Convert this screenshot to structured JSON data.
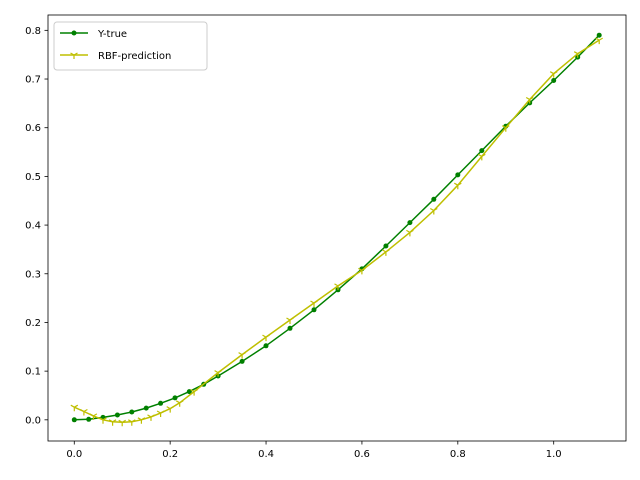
{
  "chart_data": {
    "type": "line",
    "title": "",
    "xlabel": "",
    "ylabel": "",
    "xlim": [
      -0.0548,
      1.1508
    ],
    "ylim": [
      -0.0435,
      0.8315
    ],
    "grid": false,
    "legend": "top-left",
    "xticks": [
      0.0,
      0.2,
      0.4,
      0.6,
      0.8,
      1.0
    ],
    "xtick_labels": [
      "0.0",
      "0.2",
      "0.4",
      "0.6",
      "0.8",
      "1.0"
    ],
    "yticks": [
      0.0,
      0.1,
      0.2,
      0.3,
      0.4,
      0.5,
      0.6,
      0.7,
      0.8
    ],
    "ytick_labels": [
      "0.0",
      "0.1",
      "0.2",
      "0.3",
      "0.4",
      "0.5",
      "0.6",
      "0.7",
      "0.8"
    ],
    "series": [
      {
        "name": "Y-true",
        "color": "#008000",
        "marker": "circle",
        "x": [
          0.0,
          0.03,
          0.06,
          0.09,
          0.12,
          0.15,
          0.18,
          0.21,
          0.24,
          0.27,
          0.3,
          0.35,
          0.4,
          0.45,
          0.5,
          0.55,
          0.6,
          0.65,
          0.7,
          0.75,
          0.8,
          0.85,
          0.9,
          0.95,
          1.0,
          1.05,
          1.095
        ],
        "y": [
          0.0,
          0.001,
          0.005,
          0.01,
          0.016,
          0.024,
          0.034,
          0.045,
          0.058,
          0.073,
          0.09,
          0.12,
          0.152,
          0.188,
          0.226,
          0.267,
          0.31,
          0.357,
          0.405,
          0.453,
          0.503,
          0.553,
          0.603,
          0.651,
          0.697,
          0.745,
          0.79
        ]
      },
      {
        "name": "RBF-prediction",
        "color": "#bfbf00",
        "marker": "tri_down",
        "x": [
          0.0,
          0.02,
          0.04,
          0.06,
          0.08,
          0.1,
          0.12,
          0.14,
          0.16,
          0.18,
          0.2,
          0.22,
          0.25,
          0.3,
          0.35,
          0.4,
          0.45,
          0.5,
          0.55,
          0.6,
          0.65,
          0.7,
          0.75,
          0.8,
          0.85,
          0.9,
          0.95,
          1.0,
          1.05,
          1.095
        ],
        "y": [
          0.026,
          0.017,
          0.008,
          0.0,
          -0.004,
          -0.005,
          -0.004,
          0.0,
          0.006,
          0.014,
          0.023,
          0.035,
          0.058,
          0.097,
          0.134,
          0.17,
          0.205,
          0.24,
          0.275,
          0.307,
          0.345,
          0.385,
          0.43,
          0.482,
          0.541,
          0.6,
          0.658,
          0.711,
          0.752,
          0.78
        ]
      }
    ]
  }
}
